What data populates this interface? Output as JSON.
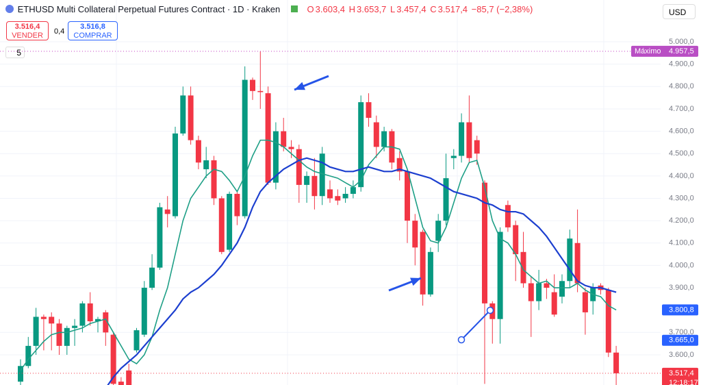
{
  "header": {
    "title": "ETHUSD Multi Collateral Perpetual Futures Contract · 1D · Kraken",
    "o_label": "O",
    "o": "3.603,4",
    "h_label": "H",
    "h": "3.653,7",
    "l_label": "L",
    "l": "3.457,4",
    "c_label": "C",
    "c": "3.517,4",
    "change": "−85,7 (−2,38%)",
    "sell_price": "3.516,4",
    "sell": "VENDER",
    "spread": "0,4",
    "buy_price": "3.516,8",
    "buy": "COMPRAR",
    "indicators": "5",
    "currency": "USD"
  },
  "chart_data": {
    "type": "candlestick",
    "up_color": "#089981",
    "down_color": "#f23645",
    "grid": true,
    "ylim": [
      3465,
      5187
    ],
    "yticks": [
      {
        "value": 5000,
        "label": "5.000,0"
      },
      {
        "value": 4900,
        "label": "4.900,0"
      },
      {
        "value": 4800,
        "label": "4.800,0"
      },
      {
        "value": 4700,
        "label": "4.700,0"
      },
      {
        "value": 4600,
        "label": "4.600,0"
      },
      {
        "value": 4500,
        "label": "4.500,0"
      },
      {
        "value": 4400,
        "label": "4.400,0"
      },
      {
        "value": 4300,
        "label": "4.300,0"
      },
      {
        "value": 4200,
        "label": "4.200,0"
      },
      {
        "value": 4100,
        "label": "4.100,0"
      },
      {
        "value": 4000,
        "label": "4.000,0"
      },
      {
        "value": 3900,
        "label": "3.900,0"
      },
      {
        "value": 3700,
        "label": "3.700,0"
      },
      {
        "value": 3600,
        "label": "3.600,0"
      }
    ],
    "open": [
      3480,
      3550,
      3640,
      3770,
      3770,
      3740,
      3640,
      3720,
      3730,
      3830,
      3750,
      3790,
      3690,
      3480,
      3530,
      3620,
      3690,
      3900,
      3990,
      4250,
      4220,
      4590,
      4760,
      4560,
      4430,
      4470,
      4300,
      4070,
      4320,
      4220,
      4830,
      4780,
      4770,
      4370,
      4600,
      4530,
      4520,
      4360,
      4400,
      4310,
      4340,
      4310,
      4300,
      4320,
      4350,
      4730,
      4640,
      4530,
      4600,
      4480,
      4420,
      4200,
      4150,
      3870,
      4110,
      4200,
      4480,
      4490,
      4640,
      4560,
      4370,
      3830,
      3760,
      4270,
      4180,
      4060,
      3920,
      3840,
      3920,
      3880,
      3860,
      3930,
      4100,
      3880,
      3840,
      3910,
      3890,
      3610
    ],
    "high": [
      3580,
      3680,
      3810,
      3780,
      3790,
      3760,
      3730,
      3760,
      3840,
      3880,
      3770,
      3800,
      3700,
      3500,
      3560,
      3720,
      3930,
      4050,
      4280,
      4310,
      4620,
      4800,
      4800,
      4580,
      4530,
      4490,
      4310,
      4330,
      4330,
      4890,
      4840,
      4957.5,
      4800,
      4640,
      4660,
      4560,
      4540,
      4420,
      4480,
      4530,
      4380,
      4340,
      4350,
      4380,
      4760,
      4770,
      4670,
      4620,
      4610,
      4510,
      4430,
      4230,
      4160,
      4080,
      4230,
      4500,
      4520,
      4680,
      4760,
      4580,
      4380,
      3840,
      4170,
      4290,
      4200,
      4150,
      3950,
      3980,
      3940,
      3960,
      3960,
      4160,
      4250,
      3900,
      3920,
      3920,
      3900,
      3640
    ],
    "low": [
      3460,
      3540,
      3600,
      3620,
      3620,
      3600,
      3600,
      3640,
      3700,
      3730,
      3700,
      3640,
      3440,
      3440,
      3450,
      3610,
      3680,
      3890,
      3980,
      4170,
      4210,
      4580,
      4540,
      4430,
      4390,
      4270,
      4050,
      4060,
      4180,
      4210,
      4740,
      4700,
      4360,
      4340,
      4510,
      4480,
      4280,
      4280,
      4250,
      4270,
      4280,
      4270,
      4280,
      4300,
      4330,
      4620,
      4480,
      4510,
      4430,
      4380,
      4100,
      4000,
      3820,
      3860,
      4060,
      4180,
      4430,
      4460,
      4460,
      4450,
      3470,
      3650,
      3650,
      4150,
      3930,
      3900,
      3680,
      3800,
      3850,
      3770,
      3830,
      3900,
      3880,
      3690,
      3780,
      3870,
      3590,
      3460
    ],
    "close": [
      3550,
      3640,
      3770,
      3760,
      3740,
      3640,
      3720,
      3730,
      3830,
      3750,
      3760,
      3700,
      3470,
      3450,
      3450,
      3710,
      3900,
      3990,
      4260,
      4230,
      4590,
      4760,
      4560,
      4460,
      4470,
      4300,
      4060,
      4320,
      4220,
      4830,
      4780,
      4775,
      4370,
      4600,
      4530,
      4520,
      4360,
      4400,
      4310,
      4500,
      4300,
      4290,
      4320,
      4350,
      4730,
      4660,
      4530,
      4600,
      4460,
      4420,
      4200,
      4080,
      3870,
      4060,
      4200,
      4390,
      4490,
      4640,
      4480,
      4500,
      3830,
      3760,
      4150,
      4170,
      4050,
      3920,
      3840,
      3920,
      3900,
      3780,
      3930,
      4120,
      3920,
      3790,
      3900,
      3890,
      3610,
      3517.4
    ],
    "series": [
      {
        "color": "#1e9f86",
        "values": [
          3530,
          3580,
          3620,
          3660,
          3690,
          3700,
          3700,
          3710,
          3720,
          3740,
          3750,
          3760,
          3700,
          3640,
          3580,
          3560,
          3600,
          3680,
          3800,
          3900,
          4050,
          4200,
          4300,
          4350,
          4400,
          4430,
          4420,
          4380,
          4330,
          4400,
          4490,
          4560,
          4560,
          4550,
          4530,
          4500,
          4470,
          4440,
          4420,
          4410,
          4400,
          4390,
          4370,
          4350,
          4380,
          4450,
          4490,
          4530,
          4530,
          4520,
          4430,
          4300,
          4170,
          4110,
          4100,
          4170,
          4280,
          4390,
          4460,
          4470,
          4350,
          4200,
          4120,
          4100,
          4050,
          3980,
          3950,
          3920,
          3930,
          3900,
          3900,
          3900,
          3920,
          3890,
          3870,
          3860,
          3820,
          3800.8
        ]
      },
      {
        "color": "#1c3fcf",
        "values": [
          null,
          null,
          null,
          null,
          null,
          null,
          null,
          null,
          null,
          null,
          null,
          3450,
          3500,
          3540,
          3570,
          3600,
          3640,
          3680,
          3720,
          3760,
          3800,
          3850,
          3880,
          3900,
          3930,
          3960,
          4000,
          4050,
          4100,
          4170,
          4260,
          4330,
          4370,
          4400,
          4430,
          4450,
          4470,
          4480,
          4470,
          4460,
          4440,
          4430,
          4420,
          4420,
          4430,
          4440,
          4430,
          4420,
          4420,
          4430,
          4420,
          4410,
          4400,
          4390,
          4370,
          4350,
          4330,
          4320,
          4310,
          4300,
          4280,
          4270,
          4250,
          4240,
          4240,
          4230,
          4200,
          4170,
          4130,
          4080,
          4030,
          3980,
          3930,
          3910,
          3900,
          3900,
          3890,
          3880
        ]
      }
    ],
    "max_label": "Máximo",
    "max": {
      "value": 4957.5,
      "label": "4.957,5"
    },
    "price_tags": [
      {
        "value": 3800.8,
        "label": "3.800,8",
        "color": "#2962ff"
      },
      {
        "value": 3665,
        "label": "3.665,0",
        "color": "#2962ff"
      },
      {
        "value": 3517.4,
        "label": "3.517,4",
        "color": "#f23645"
      }
    ],
    "countdown": "12:18:17"
  }
}
